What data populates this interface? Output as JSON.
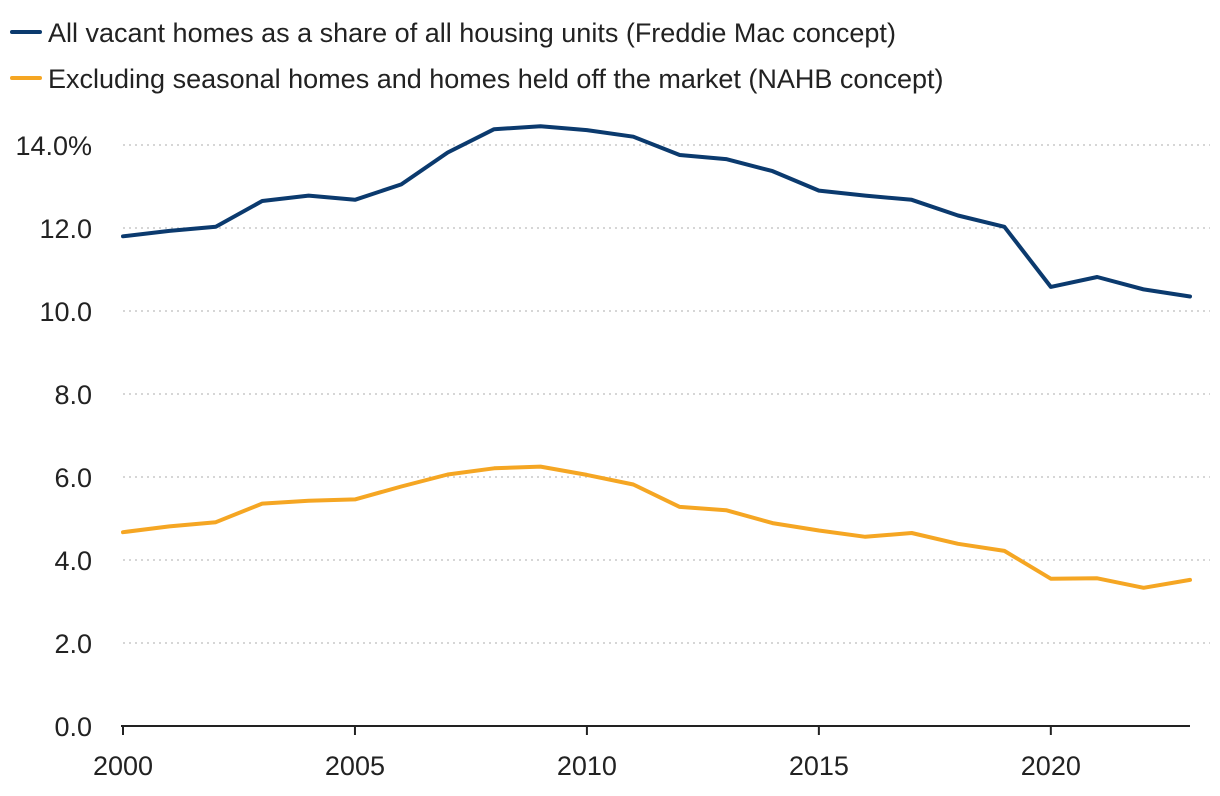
{
  "chart_data": {
    "type": "line",
    "title": "",
    "xlabel": "",
    "ylabel": "",
    "x": [
      2000,
      2001,
      2002,
      2003,
      2004,
      2005,
      2006,
      2007,
      2008,
      2009,
      2010,
      2011,
      2012,
      2013,
      2014,
      2015,
      2016,
      2017,
      2018,
      2019,
      2020,
      2021,
      2022,
      2023
    ],
    "xlim": [
      2000,
      2023
    ],
    "ylim": [
      0,
      14
    ],
    "x_ticks": [
      2000,
      2005,
      2010,
      2015,
      2020
    ],
    "x_tick_labels": [
      "2000",
      "2005",
      "2010",
      "2015",
      "2020"
    ],
    "y_ticks": [
      0,
      2,
      4,
      6,
      8,
      10,
      12,
      14
    ],
    "y_tick_labels": [
      "0.0",
      "2.0",
      "4.0",
      "6.0",
      "8.0",
      "10.0",
      "12.0",
      "14.0%"
    ],
    "grid": true,
    "legend_position": "top-left",
    "series": [
      {
        "name": "All vacant homes as a share of all housing units (Freddie Mac concept)",
        "color": "#0b3a6e",
        "values": [
          11.8,
          11.93,
          12.03,
          12.65,
          12.78,
          12.68,
          13.05,
          13.82,
          14.38,
          14.45,
          14.36,
          14.2,
          13.76,
          13.66,
          13.37,
          12.9,
          12.78,
          12.68,
          12.3,
          12.03,
          10.58,
          10.82,
          10.52,
          10.35
        ]
      },
      {
        "name": "Excluding seasonal homes and homes held off the market (NAHB concept)",
        "color": "#f5a623",
        "values": [
          4.67,
          4.81,
          4.91,
          5.36,
          5.43,
          5.46,
          5.77,
          6.06,
          6.21,
          6.25,
          6.05,
          5.82,
          5.28,
          5.2,
          4.89,
          4.71,
          4.56,
          4.65,
          4.39,
          4.22,
          3.55,
          3.56,
          3.33,
          3.52
        ]
      }
    ]
  }
}
